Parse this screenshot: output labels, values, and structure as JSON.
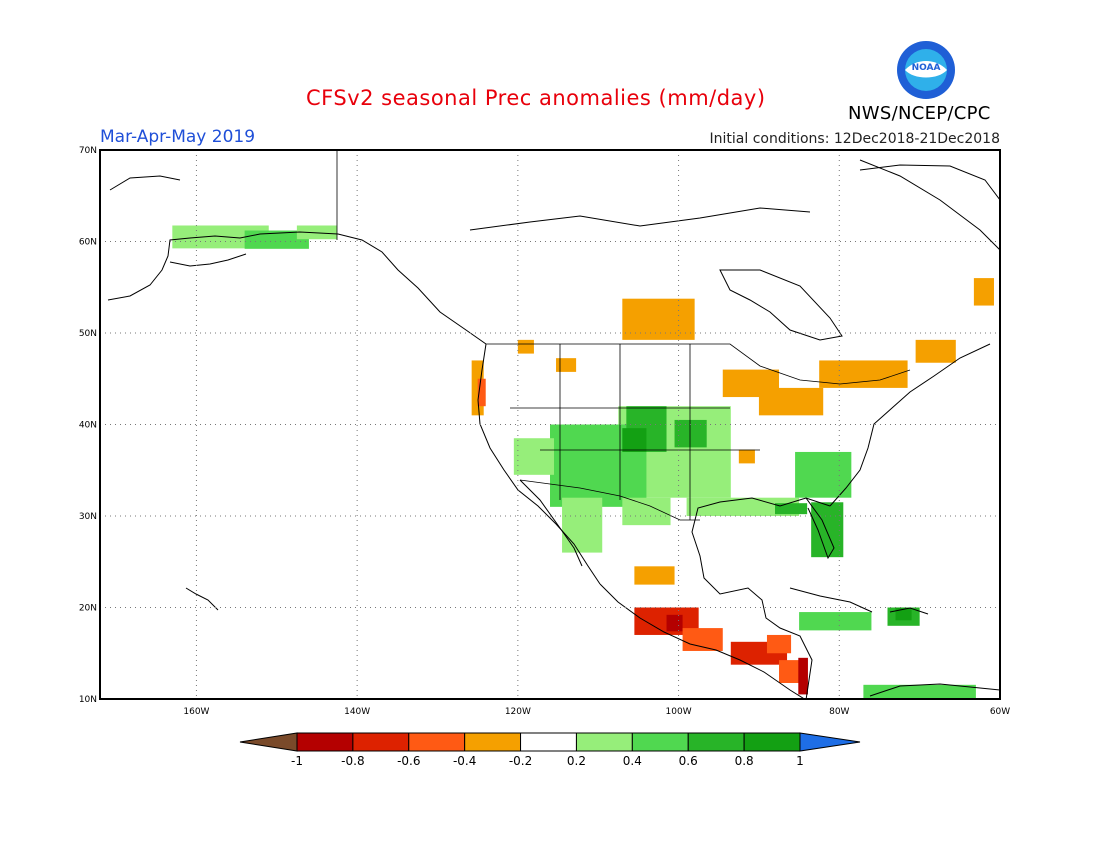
{
  "title": "CFSv2 seasonal Prec anomalies (mm/day)",
  "season": "Mar-Apr-May 2019",
  "initial_conditions": "Initial conditions: 12Dec2018-21Dec2018",
  "agency": "NWS/NCEP/CPC",
  "logo_text": "NOAA",
  "colors": {
    "title": "#e8000b",
    "season": "#1f4fd8",
    "logo_outer": "#1f5fd6",
    "logo_inner": "#2fb0ea"
  },
  "map": {
    "lon_range": [
      -172,
      -60
    ],
    "lat_range": [
      10,
      70
    ],
    "lat_labels": [
      {
        "value": 70,
        "text": "70N"
      },
      {
        "value": 60,
        "text": "60N"
      },
      {
        "value": 50,
        "text": "50N"
      },
      {
        "value": 40,
        "text": "40N"
      },
      {
        "value": 30,
        "text": "30N"
      },
      {
        "value": 20,
        "text": "20N"
      },
      {
        "value": 10,
        "text": "10N"
      }
    ],
    "lon_labels": [
      {
        "value": -160,
        "text": "160W"
      },
      {
        "value": -140,
        "text": "140W"
      },
      {
        "value": -120,
        "text": "120W"
      },
      {
        "value": -100,
        "text": "100W"
      },
      {
        "value": -80,
        "text": "80W"
      },
      {
        "value": -60,
        "text": "60W"
      }
    ],
    "anomaly_regions": [
      {
        "lon": -157,
        "lat": 60.5,
        "w": 12,
        "h": 2.5,
        "value": 0.3
      },
      {
        "lon": -150,
        "lat": 60.2,
        "w": 8,
        "h": 2,
        "value": 0.5
      },
      {
        "lon": -145,
        "lat": 61,
        "w": 5,
        "h": 1.5,
        "value": 0.3
      },
      {
        "lon": -125,
        "lat": 44,
        "w": 1.5,
        "h": 6,
        "value": -0.4
      },
      {
        "lon": -124.5,
        "lat": 43.5,
        "w": 1,
        "h": 3,
        "value": -0.6
      },
      {
        "lon": -119,
        "lat": 48.5,
        "w": 2,
        "h": 1.5,
        "value": -0.4
      },
      {
        "lon": -114,
        "lat": 46.5,
        "w": 2.5,
        "h": 1.5,
        "value": -0.4
      },
      {
        "lon": -102.5,
        "lat": 51.5,
        "w": 9,
        "h": 4.5,
        "value": -0.4
      },
      {
        "lon": -91,
        "lat": 44.5,
        "w": 7,
        "h": 3,
        "value": -0.4
      },
      {
        "lon": -86,
        "lat": 42.5,
        "w": 8,
        "h": 3,
        "value": -0.4
      },
      {
        "lon": -77,
        "lat": 45.5,
        "w": 11,
        "h": 3,
        "value": -0.4
      },
      {
        "lon": -68,
        "lat": 48,
        "w": 5,
        "h": 2.5,
        "value": -0.4
      },
      {
        "lon": -62,
        "lat": 54.5,
        "w": 2.5,
        "h": 3,
        "value": -0.4
      },
      {
        "lon": -91.5,
        "lat": 36.5,
        "w": 2,
        "h": 1.5,
        "value": -0.4
      },
      {
        "lon": -100.5,
        "lat": 37,
        "w": 14,
        "h": 10,
        "value": 0.3
      },
      {
        "lon": -110,
        "lat": 35.5,
        "w": 12,
        "h": 9,
        "value": 0.5
      },
      {
        "lon": -118,
        "lat": 36.5,
        "w": 5,
        "h": 4,
        "value": 0.3
      },
      {
        "lon": -112,
        "lat": 29,
        "w": 5,
        "h": 6,
        "value": 0.3
      },
      {
        "lon": -104,
        "lat": 30.5,
        "w": 6,
        "h": 3,
        "value": 0.3
      },
      {
        "lon": -92,
        "lat": 31,
        "w": 14,
        "h": 2,
        "value": 0.3
      },
      {
        "lon": -82,
        "lat": 34.5,
        "w": 7,
        "h": 5,
        "value": 0.5
      },
      {
        "lon": -81.5,
        "lat": 28.5,
        "w": 4,
        "h": 6,
        "value": 0.7
      },
      {
        "lon": -86,
        "lat": 30.8,
        "w": 4,
        "h": 1.2,
        "value": 0.7
      },
      {
        "lon": -104,
        "lat": 39.5,
        "w": 5,
        "h": 5,
        "value": 0.7
      },
      {
        "lon": -105.5,
        "lat": 38.3,
        "w": 3,
        "h": 2.6,
        "value": 0.9
      },
      {
        "lon": -98.5,
        "lat": 39,
        "w": 4,
        "h": 3,
        "value": 0.7
      },
      {
        "lon": -80.5,
        "lat": 18.5,
        "w": 9,
        "h": 2,
        "value": 0.5
      },
      {
        "lon": -72,
        "lat": 19,
        "w": 4,
        "h": 2,
        "value": 0.7
      },
      {
        "lon": -72,
        "lat": 19.3,
        "w": 2,
        "h": 1.4,
        "value": 0.9
      },
      {
        "lon": -70,
        "lat": 10.8,
        "w": 14,
        "h": 1.5,
        "value": 0.4
      },
      {
        "lon": -103,
        "lat": 23.5,
        "w": 5,
        "h": 2,
        "value": -0.4
      },
      {
        "lon": -101.5,
        "lat": 18.5,
        "w": 8,
        "h": 3,
        "value": -0.7
      },
      {
        "lon": -100.5,
        "lat": 18.3,
        "w": 2,
        "h": 1.8,
        "value": -0.9
      },
      {
        "lon": -97,
        "lat": 16.5,
        "w": 5,
        "h": 2.5,
        "value": -0.6
      },
      {
        "lon": -90,
        "lat": 15,
        "w": 7,
        "h": 2.5,
        "value": -0.7
      },
      {
        "lon": -86,
        "lat": 13,
        "w": 3,
        "h": 2.5,
        "value": -0.6
      },
      {
        "lon": -84.5,
        "lat": 12.5,
        "w": 1.2,
        "h": 4,
        "value": -0.9
      },
      {
        "lon": -87.5,
        "lat": 16,
        "w": 3,
        "h": 2,
        "value": -0.5
      }
    ]
  },
  "colorbar": {
    "labels": [
      "-1",
      "-0.8",
      "-0.6",
      "-0.4",
      "-0.2",
      "0.2",
      "0.4",
      "0.6",
      "0.8",
      "1"
    ],
    "under_color": "#7a4a2a",
    "over_color": "#1e6ee6",
    "bins": [
      {
        "lo": -1,
        "hi": -0.8,
        "color": "#b40000"
      },
      {
        "lo": -0.8,
        "hi": -0.6,
        "color": "#dd2200"
      },
      {
        "lo": -0.6,
        "hi": -0.4,
        "color": "#ff5a14"
      },
      {
        "lo": -0.4,
        "hi": -0.2,
        "color": "#f5a000"
      },
      {
        "lo": -0.2,
        "hi": 0.2,
        "color": "#ffffff"
      },
      {
        "lo": 0.2,
        "hi": 0.4,
        "color": "#96ee7a"
      },
      {
        "lo": 0.4,
        "hi": 0.6,
        "color": "#50d850"
      },
      {
        "lo": 0.6,
        "hi": 0.8,
        "color": "#28b428"
      },
      {
        "lo": 0.8,
        "hi": 1,
        "color": "#13a013"
      }
    ]
  }
}
